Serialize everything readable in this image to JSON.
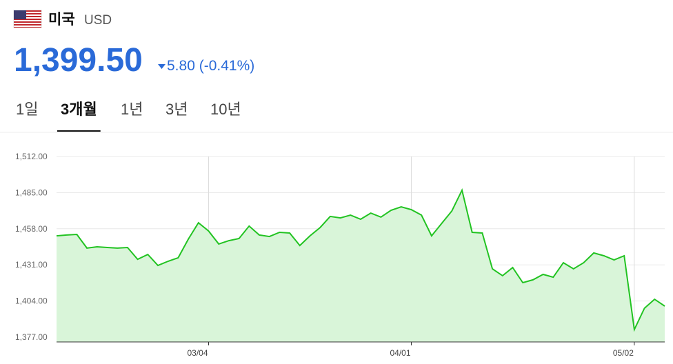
{
  "header": {
    "country": "미국",
    "currency": "USD",
    "price": "1,399.50",
    "change": "5.80",
    "change_pct": "(-0.41%)"
  },
  "tabs": [
    "1일",
    "3개월",
    "1년",
    "3년",
    "10년"
  ],
  "selected_tab": 1,
  "chart_data": {
    "type": "area",
    "color": "#22c322",
    "fill": "#d9f5d9",
    "categories": [
      null,
      null,
      null,
      null,
      null,
      null,
      null,
      null,
      null,
      null,
      null,
      null,
      null,
      null,
      null,
      "03/04",
      null,
      null,
      null,
      null,
      null,
      null,
      null,
      null,
      null,
      null,
      null,
      null,
      null,
      null,
      null,
      null,
      null,
      null,
      null,
      "04/01",
      null,
      null,
      null,
      null,
      null,
      null,
      null,
      null,
      null,
      null,
      null,
      null,
      null,
      null,
      null,
      null,
      null,
      null,
      null,
      null,
      null,
      "05/02",
      null,
      null,
      null
    ],
    "values": [
      1452.7,
      1453.3,
      1453.8,
      1443.5,
      1444.5,
      1444.0,
      1443.5,
      1444.0,
      1435.2,
      1438.8,
      1430.6,
      1433.7,
      1436.3,
      1450.2,
      1462.5,
      1456.3,
      1446.6,
      1449.1,
      1450.7,
      1460.0,
      1453.3,
      1452.2,
      1455.3,
      1454.8,
      1445.5,
      1452.7,
      1458.9,
      1467.2,
      1466.1,
      1468.2,
      1465.1,
      1469.7,
      1466.7,
      1471.8,
      1474.4,
      1472.3,
      1468.2,
      1452.7,
      1462.0,
      1471.3,
      1486.8,
      1455.3,
      1454.8,
      1428.0,
      1422.9,
      1429.0,
      1417.7,
      1419.8,
      1423.9,
      1421.8,
      1432.6,
      1428.0,
      1432.6,
      1439.9,
      1437.8,
      1434.7,
      1437.8,
      1382.7,
      1398.6,
      1405.3,
      1400.2
    ],
    "ylim": [
      1373.4,
      1512
    ],
    "yticks": [
      {
        "value": 1377,
        "label": "1,377.00"
      },
      {
        "value": 1404,
        "label": "1,404.00"
      },
      {
        "value": 1431,
        "label": "1,431.00"
      },
      {
        "value": 1458,
        "label": "1,458.00"
      },
      {
        "value": 1485,
        "label": "1,485.00"
      },
      {
        "value": 1512,
        "label": "1,512.00"
      }
    ],
    "grid": true
  }
}
